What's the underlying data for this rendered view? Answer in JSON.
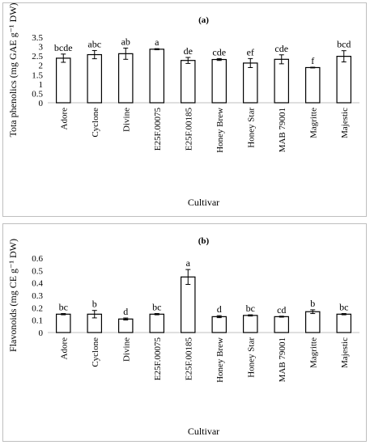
{
  "chart_data": [
    {
      "type": "bar",
      "panel_label": "(a)",
      "categories": [
        "Adore",
        "Cyclone",
        "Divine",
        "E25F.00075",
        "E25F.00185",
        "Honey Brew",
        "Honey Star",
        "MAB 79001",
        "Magritte",
        "Majestic"
      ],
      "values": [
        2.38,
        2.57,
        2.62,
        2.86,
        2.26,
        2.31,
        2.12,
        2.32,
        1.88,
        2.48
      ],
      "errors": [
        0.22,
        0.22,
        0.3,
        0.03,
        0.16,
        0.05,
        0.24,
        0.24,
        0.02,
        0.3
      ],
      "significance": [
        "bcde",
        "abc",
        "ab",
        "a",
        "de",
        "cde",
        "ef",
        "cde",
        "f",
        "bcd"
      ],
      "ylim": [
        0,
        3.5
      ],
      "yticks": [
        "0",
        "0.5",
        "1",
        "1.5",
        "2",
        "2.5",
        "3",
        "3.5"
      ],
      "ylabel": "Tota phenolics (mg GAE g⁻¹ DW)",
      "xlabel": "Cultivar",
      "grid": false,
      "bar_color": "#ffffff",
      "edge_color": "#000000"
    },
    {
      "type": "bar",
      "panel_label": "(b)",
      "categories": [
        "Adore",
        "Cyclone",
        "Divine",
        "E25F.00075",
        "E25F.00185",
        "Honey Brew",
        "Honey Star",
        "MAB 79001",
        "Magritte",
        "Majestic"
      ],
      "values": [
        0.148,
        0.148,
        0.109,
        0.148,
        0.448,
        0.128,
        0.138,
        0.128,
        0.168,
        0.148
      ],
      "errors": [
        0.005,
        0.03,
        0.008,
        0.005,
        0.06,
        0.008,
        0.005,
        0.004,
        0.015,
        0.005
      ],
      "significance": [
        "bc",
        "b",
        "d",
        "bc",
        "a",
        "d",
        "bc",
        "cd",
        "b",
        "bc"
      ],
      "ylim": [
        0,
        0.6
      ],
      "yticks": [
        "0",
        "0.1",
        "0.2",
        "0.3",
        "0.4",
        "0.5",
        "0.6"
      ],
      "ylabel": "Flavonoids (mg CE g⁻¹ DW)",
      "xlabel": "Cultivar",
      "grid": false,
      "bar_color": "#ffffff",
      "edge_color": "#000000"
    }
  ]
}
